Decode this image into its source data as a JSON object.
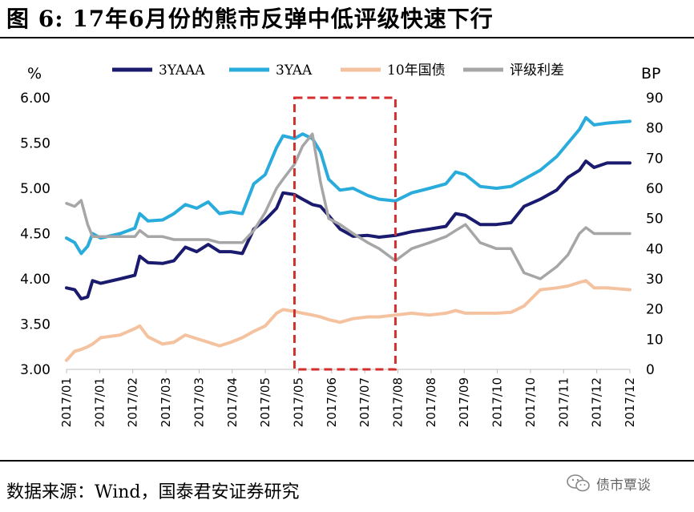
{
  "figure": {
    "title": "图  6:  17年6月份的熊市反弹中低评级快速下行",
    "source": "数据来源：Wind，国泰君安证券研究",
    "watermark": "债市覃谈"
  },
  "chart_data": {
    "type": "line",
    "y_left_label": "%",
    "y_right_label": "BP",
    "y_left_ticks": [
      "6.00",
      "5.50",
      "5.00",
      "4.50",
      "4.00",
      "3.50",
      "3.00"
    ],
    "y_right_ticks": [
      "90",
      "80",
      "70",
      "60",
      "50",
      "40",
      "30",
      "20",
      "10",
      "0"
    ],
    "ylim_left": [
      3.0,
      6.0
    ],
    "ylim_right": [
      0,
      90
    ],
    "x_tick_labels": [
      "2017/01",
      "2017/01",
      "2017/02",
      "2017/03",
      "2017/03",
      "2017/04",
      "2017/05",
      "2017/05",
      "2017/06",
      "2017/07",
      "2017/08",
      "2017/08",
      "2017/09",
      "2017/10",
      "2017/10",
      "2017/11",
      "2017/12",
      "2017/12"
    ],
    "x_range": [
      "2017/01/03",
      "2017/12/15"
    ],
    "legend_position": "top",
    "highlight": {
      "from": "2017/05/23",
      "to": "2017/07/24",
      "color": "#d32f2f",
      "style": "dashed"
    },
    "series": [
      {
        "name": "3YAAA",
        "axis": "left",
        "color": "#1a1a6e",
        "points": [
          [
            "2017/01/03",
            3.9
          ],
          [
            "2017/01/08",
            3.88
          ],
          [
            "2017/01/12",
            3.78
          ],
          [
            "2017/01/16",
            3.8
          ],
          [
            "2017/01/19",
            3.98
          ],
          [
            "2017/01/24",
            3.95
          ],
          [
            "2017/02/05",
            4.0
          ],
          [
            "2017/02/14",
            4.04
          ],
          [
            "2017/02/17",
            4.25
          ],
          [
            "2017/02/22",
            4.18
          ],
          [
            "2017/03/03",
            4.17
          ],
          [
            "2017/03/10",
            4.2
          ],
          [
            "2017/03/17",
            4.35
          ],
          [
            "2017/03/24",
            4.3
          ],
          [
            "2017/03/31",
            4.38
          ],
          [
            "2017/04/07",
            4.3
          ],
          [
            "2017/04/14",
            4.3
          ],
          [
            "2017/04/21",
            4.28
          ],
          [
            "2017/04/28",
            4.55
          ],
          [
            "2017/05/05",
            4.65
          ],
          [
            "2017/05/12",
            4.78
          ],
          [
            "2017/05/16",
            4.95
          ],
          [
            "2017/05/23",
            4.93
          ],
          [
            "2017/05/28",
            4.88
          ],
          [
            "2017/06/03",
            4.82
          ],
          [
            "2017/06/08",
            4.8
          ],
          [
            "2017/06/13",
            4.7
          ],
          [
            "2017/06/20",
            4.55
          ],
          [
            "2017/06/28",
            4.47
          ],
          [
            "2017/07/07",
            4.48
          ],
          [
            "2017/07/14",
            4.46
          ],
          [
            "2017/07/24",
            4.48
          ],
          [
            "2017/08/03",
            4.52
          ],
          [
            "2017/08/14",
            4.55
          ],
          [
            "2017/08/24",
            4.58
          ],
          [
            "2017/08/30",
            4.72
          ],
          [
            "2017/09/05",
            4.7
          ],
          [
            "2017/09/14",
            4.6
          ],
          [
            "2017/09/24",
            4.6
          ],
          [
            "2017/10/03",
            4.62
          ],
          [
            "2017/10/11",
            4.8
          ],
          [
            "2017/10/21",
            4.88
          ],
          [
            "2017/10/31",
            4.98
          ],
          [
            "2017/11/07",
            5.12
          ],
          [
            "2017/11/14",
            5.2
          ],
          [
            "2017/11/18",
            5.3
          ],
          [
            "2017/11/23",
            5.23
          ],
          [
            "2017/12/01",
            5.28
          ],
          [
            "2017/12/15",
            5.28
          ]
        ]
      },
      {
        "name": "3YAA",
        "axis": "left",
        "color": "#29abdc",
        "points": [
          [
            "2017/01/03",
            4.45
          ],
          [
            "2017/01/08",
            4.4
          ],
          [
            "2017/01/12",
            4.28
          ],
          [
            "2017/01/16",
            4.36
          ],
          [
            "2017/01/19",
            4.5
          ],
          [
            "2017/01/24",
            4.45
          ],
          [
            "2017/02/05",
            4.5
          ],
          [
            "2017/02/14",
            4.56
          ],
          [
            "2017/02/17",
            4.72
          ],
          [
            "2017/02/22",
            4.64
          ],
          [
            "2017/03/03",
            4.65
          ],
          [
            "2017/03/10",
            4.72
          ],
          [
            "2017/03/17",
            4.82
          ],
          [
            "2017/03/24",
            4.78
          ],
          [
            "2017/03/31",
            4.85
          ],
          [
            "2017/04/07",
            4.72
          ],
          [
            "2017/04/14",
            4.74
          ],
          [
            "2017/04/21",
            4.72
          ],
          [
            "2017/04/28",
            5.05
          ],
          [
            "2017/05/05",
            5.15
          ],
          [
            "2017/05/12",
            5.45
          ],
          [
            "2017/05/16",
            5.58
          ],
          [
            "2017/05/23",
            5.55
          ],
          [
            "2017/05/28",
            5.6
          ],
          [
            "2017/06/03",
            5.55
          ],
          [
            "2017/06/08",
            5.4
          ],
          [
            "2017/06/13",
            5.1
          ],
          [
            "2017/06/20",
            4.98
          ],
          [
            "2017/06/28",
            5.0
          ],
          [
            "2017/07/07",
            4.92
          ],
          [
            "2017/07/14",
            4.88
          ],
          [
            "2017/07/24",
            4.86
          ],
          [
            "2017/08/03",
            4.95
          ],
          [
            "2017/08/14",
            5.0
          ],
          [
            "2017/08/24",
            5.05
          ],
          [
            "2017/08/30",
            5.18
          ],
          [
            "2017/09/05",
            5.15
          ],
          [
            "2017/09/14",
            5.02
          ],
          [
            "2017/09/24",
            5.0
          ],
          [
            "2017/10/03",
            5.02
          ],
          [
            "2017/10/11",
            5.1
          ],
          [
            "2017/10/21",
            5.2
          ],
          [
            "2017/10/31",
            5.35
          ],
          [
            "2017/11/07",
            5.5
          ],
          [
            "2017/11/14",
            5.65
          ],
          [
            "2017/11/18",
            5.78
          ],
          [
            "2017/11/23",
            5.7
          ],
          [
            "2017/12/01",
            5.72
          ],
          [
            "2017/12/15",
            5.74
          ]
        ]
      },
      {
        "name": "10年国债",
        "axis": "left",
        "color": "#f5c2a0",
        "points": [
          [
            "2017/01/03",
            3.1
          ],
          [
            "2017/01/08",
            3.2
          ],
          [
            "2017/01/12",
            3.22
          ],
          [
            "2017/01/16",
            3.25
          ],
          [
            "2017/01/19",
            3.28
          ],
          [
            "2017/01/24",
            3.35
          ],
          [
            "2017/02/05",
            3.38
          ],
          [
            "2017/02/14",
            3.45
          ],
          [
            "2017/02/17",
            3.48
          ],
          [
            "2017/02/22",
            3.36
          ],
          [
            "2017/03/03",
            3.28
          ],
          [
            "2017/03/10",
            3.3
          ],
          [
            "2017/03/17",
            3.38
          ],
          [
            "2017/03/24",
            3.34
          ],
          [
            "2017/03/31",
            3.3
          ],
          [
            "2017/04/07",
            3.26
          ],
          [
            "2017/04/14",
            3.3
          ],
          [
            "2017/04/21",
            3.35
          ],
          [
            "2017/04/28",
            3.42
          ],
          [
            "2017/05/05",
            3.48
          ],
          [
            "2017/05/12",
            3.62
          ],
          [
            "2017/05/16",
            3.66
          ],
          [
            "2017/05/23",
            3.64
          ],
          [
            "2017/05/28",
            3.62
          ],
          [
            "2017/06/03",
            3.6
          ],
          [
            "2017/06/08",
            3.58
          ],
          [
            "2017/06/13",
            3.55
          ],
          [
            "2017/06/20",
            3.52
          ],
          [
            "2017/06/28",
            3.56
          ],
          [
            "2017/07/07",
            3.58
          ],
          [
            "2017/07/14",
            3.58
          ],
          [
            "2017/07/24",
            3.6
          ],
          [
            "2017/08/03",
            3.62
          ],
          [
            "2017/08/14",
            3.6
          ],
          [
            "2017/08/24",
            3.62
          ],
          [
            "2017/08/30",
            3.65
          ],
          [
            "2017/09/05",
            3.62
          ],
          [
            "2017/09/14",
            3.62
          ],
          [
            "2017/09/24",
            3.62
          ],
          [
            "2017/10/03",
            3.63
          ],
          [
            "2017/10/11",
            3.7
          ],
          [
            "2017/10/21",
            3.88
          ],
          [
            "2017/10/31",
            3.9
          ],
          [
            "2017/11/07",
            3.92
          ],
          [
            "2017/11/14",
            3.96
          ],
          [
            "2017/11/18",
            3.98
          ],
          [
            "2017/11/23",
            3.9
          ],
          [
            "2017/12/01",
            3.9
          ],
          [
            "2017/12/15",
            3.88
          ]
        ]
      },
      {
        "name": "评级利差",
        "axis": "right",
        "color": "#a6a6a6",
        "points": [
          [
            "2017/01/03",
            55
          ],
          [
            "2017/01/08",
            54
          ],
          [
            "2017/01/12",
            56
          ],
          [
            "2017/01/16",
            48
          ],
          [
            "2017/01/19",
            44
          ],
          [
            "2017/01/24",
            44
          ],
          [
            "2017/02/05",
            44
          ],
          [
            "2017/02/14",
            44
          ],
          [
            "2017/02/17",
            46
          ],
          [
            "2017/02/22",
            44
          ],
          [
            "2017/03/03",
            44
          ],
          [
            "2017/03/10",
            43
          ],
          [
            "2017/03/17",
            43
          ],
          [
            "2017/03/24",
            43
          ],
          [
            "2017/03/31",
            43
          ],
          [
            "2017/04/07",
            42
          ],
          [
            "2017/04/14",
            42
          ],
          [
            "2017/04/21",
            42
          ],
          [
            "2017/04/28",
            46
          ],
          [
            "2017/05/05",
            52
          ],
          [
            "2017/05/12",
            60
          ],
          [
            "2017/05/16",
            63
          ],
          [
            "2017/05/23",
            68
          ],
          [
            "2017/05/28",
            74
          ],
          [
            "2017/06/03",
            78
          ],
          [
            "2017/06/08",
            62
          ],
          [
            "2017/06/13",
            50
          ],
          [
            "2017/06/20",
            48
          ],
          [
            "2017/06/28",
            45
          ],
          [
            "2017/07/07",
            42
          ],
          [
            "2017/07/14",
            40
          ],
          [
            "2017/07/24",
            36
          ],
          [
            "2017/08/03",
            40
          ],
          [
            "2017/08/14",
            42
          ],
          [
            "2017/08/24",
            44
          ],
          [
            "2017/08/30",
            46
          ],
          [
            "2017/09/05",
            48
          ],
          [
            "2017/09/14",
            42
          ],
          [
            "2017/09/24",
            40
          ],
          [
            "2017/10/03",
            40
          ],
          [
            "2017/10/11",
            32
          ],
          [
            "2017/10/21",
            30
          ],
          [
            "2017/10/31",
            34
          ],
          [
            "2017/11/07",
            38
          ],
          [
            "2017/11/14",
            45
          ],
          [
            "2017/11/18",
            47
          ],
          [
            "2017/11/23",
            45
          ],
          [
            "2017/12/01",
            45
          ],
          [
            "2017/12/15",
            45
          ]
        ]
      }
    ]
  }
}
